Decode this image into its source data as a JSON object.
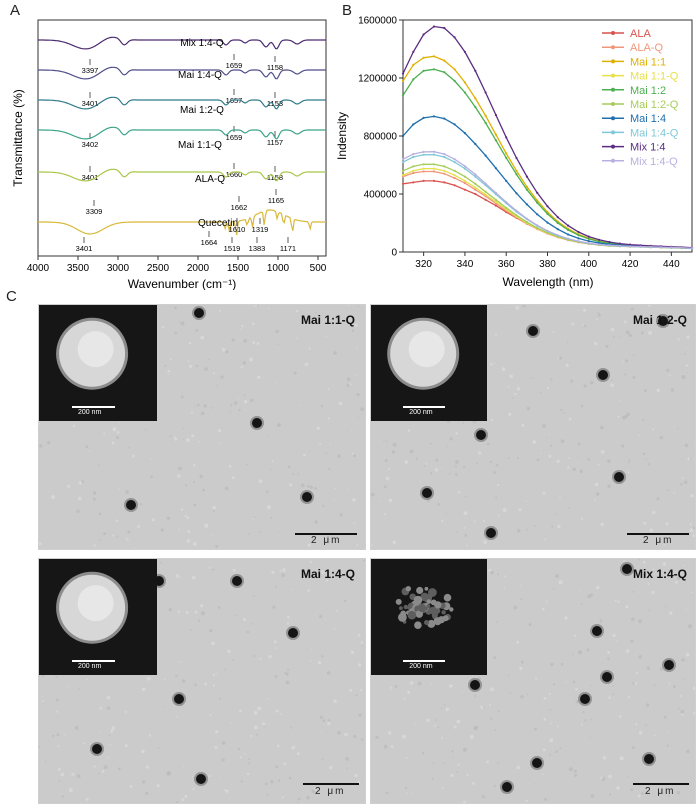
{
  "panels": {
    "a": "A",
    "b": "B",
    "c": "C"
  },
  "chart_data": [
    {
      "type": "line",
      "panel": "A",
      "xlabel": "Wavenumber (cm⁻¹)",
      "ylabel": "Transmittance (%)",
      "xlim": [
        4000,
        400
      ],
      "xticks": [
        4000,
        3500,
        3000,
        2500,
        2000,
        1500,
        1000,
        500
      ],
      "series": [
        {
          "name": "Mix 1:4-Q",
          "color": "#4b2a6e",
          "peaks": [
            "3397",
            "1659",
            "1158"
          ]
        },
        {
          "name": "Mai 1:4-Q",
          "color": "#4e4d8a",
          "peaks": [
            "3401",
            "1657",
            "1153"
          ]
        },
        {
          "name": "Mai 1:2-Q",
          "color": "#2f7b8a",
          "peaks": [
            "3402",
            "1659",
            "1157"
          ]
        },
        {
          "name": "Mai 1:1-Q",
          "color": "#3aa38a",
          "peaks": [
            "3401",
            "1660",
            "1158"
          ]
        },
        {
          "name": "ALA-Q",
          "color": "#a8c64a",
          "peaks": [
            "3309",
            "1662",
            "1165"
          ]
        },
        {
          "name": "Quecetin",
          "color": "#d9b83a",
          "peaks": [
            "3401",
            "1664",
            "1610",
            "1519",
            "1383",
            "1319",
            "1171"
          ]
        }
      ]
    },
    {
      "type": "line",
      "panel": "B",
      "xlabel": "Wavelength (nm)",
      "ylabel": "Indensity",
      "xlim": [
        310,
        450
      ],
      "ylim": [
        0,
        1600000
      ],
      "xticks": [
        320,
        340,
        360,
        380,
        400,
        420,
        440
      ],
      "yticks": [
        0,
        400000,
        800000,
        1200000,
        1600000
      ],
      "x": [
        310,
        315,
        320,
        325,
        330,
        335,
        340,
        345,
        350,
        355,
        360,
        365,
        370,
        375,
        380,
        385,
        390,
        395,
        400,
        405,
        410,
        415,
        420,
        425,
        430,
        435,
        440,
        445,
        450
      ],
      "series": [
        {
          "name": "ALA",
          "color": "#d9534f",
          "values": [
            470000,
            480000,
            490000,
            490000,
            480000,
            460000,
            430000,
            400000,
            360000,
            320000,
            275000,
            235000,
            195000,
            160000,
            130000,
            105000,
            85000,
            70000,
            58000,
            50000,
            45000,
            42000,
            40000,
            38000,
            36000,
            34000,
            32000,
            30000,
            28000
          ]
        },
        {
          "name": "ALA-Q",
          "color": "#f0967a",
          "values": [
            520000,
            545000,
            555000,
            555000,
            540000,
            510000,
            475000,
            430000,
            385000,
            335000,
            285000,
            238000,
            195000,
            158000,
            127000,
            102000,
            82000,
            67000,
            56000,
            48000,
            43000,
            40000,
            38000,
            36000,
            34000,
            32000,
            30000,
            28000,
            26000
          ]
        },
        {
          "name": "Mai 1:1",
          "color": "#e0b000",
          "values": [
            1180000,
            1290000,
            1340000,
            1350000,
            1320000,
            1260000,
            1170000,
            1060000,
            940000,
            810000,
            680000,
            560000,
            450000,
            355000,
            275000,
            210000,
            160000,
            122000,
            95000,
            75000,
            62000,
            53000,
            47000,
            43000,
            40000,
            37000,
            34000,
            31000,
            28000
          ]
        },
        {
          "name": "Mai 1:1-Q",
          "color": "#e6e04a",
          "values": [
            530000,
            560000,
            575000,
            575000,
            560000,
            530000,
            490000,
            445000,
            395000,
            345000,
            293000,
            245000,
            200000,
            162000,
            130000,
            104000,
            84000,
            68000,
            57000,
            49000,
            43000,
            40000,
            37000,
            35000,
            33000,
            31000,
            29000,
            27000,
            25000
          ]
        },
        {
          "name": "Mai 1:2",
          "color": "#4caf50",
          "values": [
            1080000,
            1190000,
            1250000,
            1260000,
            1240000,
            1180000,
            1100000,
            1000000,
            890000,
            770000,
            650000,
            535000,
            430000,
            340000,
            263000,
            200000,
            152000,
            116000,
            90000,
            72000,
            60000,
            51000,
            45000,
            41000,
            38000,
            35000,
            32000,
            29000,
            26000
          ]
        },
        {
          "name": "Mai 1:2-Q",
          "color": "#a6cc5a",
          "values": [
            560000,
            590000,
            605000,
            605000,
            590000,
            560000,
            520000,
            470000,
            415000,
            360000,
            305000,
            253000,
            206000,
            166000,
            133000,
            106000,
            85000,
            69000,
            57000,
            49000,
            43000,
            40000,
            37000,
            35000,
            33000,
            31000,
            29000,
            27000,
            25000
          ]
        },
        {
          "name": "Mai 1:4",
          "color": "#1f6fae",
          "values": [
            800000,
            880000,
            925000,
            935000,
            920000,
            880000,
            820000,
            745000,
            665000,
            578000,
            490000,
            405000,
            328000,
            260000,
            203000,
            157000,
            121000,
            94000,
            75000,
            62000,
            53000,
            47000,
            43000,
            40000,
            37000,
            34000,
            31000,
            28000,
            25000
          ]
        },
        {
          "name": "Mai 1:4-Q",
          "color": "#7fc8d8",
          "values": [
            620000,
            655000,
            670000,
            672000,
            655000,
            620000,
            575000,
            520000,
            460000,
            398000,
            336000,
            278000,
            226000,
            181000,
            144000,
            114000,
            91000,
            73000,
            60000,
            51000,
            45000,
            41000,
            38000,
            36000,
            34000,
            32000,
            30000,
            28000,
            26000
          ]
        },
        {
          "name": "Mix 1:4",
          "color": "#5a2d82",
          "values": [
            1230000,
            1380000,
            1500000,
            1555000,
            1545000,
            1480000,
            1380000,
            1250000,
            1100000,
            945000,
            790000,
            648000,
            520000,
            408000,
            315000,
            240000,
            182000,
            138000,
            106000,
            84000,
            69000,
            58000,
            51000,
            46000,
            42000,
            39000,
            36000,
            33000,
            30000
          ]
        },
        {
          "name": "Mix 1:4-Q",
          "color": "#b8b0e0",
          "values": [
            640000,
            675000,
            690000,
            692000,
            675000,
            640000,
            592000,
            535000,
            472000,
            408000,
            344000,
            284000,
            230000,
            184000,
            146000,
            116000,
            92000,
            74000,
            61000,
            52000,
            46000,
            42000,
            39000,
            37000,
            35000,
            33000,
            31000,
            29000,
            27000
          ]
        }
      ]
    }
  ],
  "tem_panels": [
    {
      "label": "Mai 1:1-Q",
      "scale": "2 μm",
      "inset_scale": "200 nm",
      "inset": "sphere"
    },
    {
      "label": "Mai 1:2-Q",
      "scale": "2 μm",
      "inset_scale": "200 nm",
      "inset": "sphere"
    },
    {
      "label": "Mai 1:4-Q",
      "scale": "2 μm",
      "inset_scale": "200 nm",
      "inset": "sphere"
    },
    {
      "label": "Mix 1:4-Q",
      "scale": "2 μm",
      "inset_scale": "200 nm",
      "inset": "aggregate"
    }
  ]
}
